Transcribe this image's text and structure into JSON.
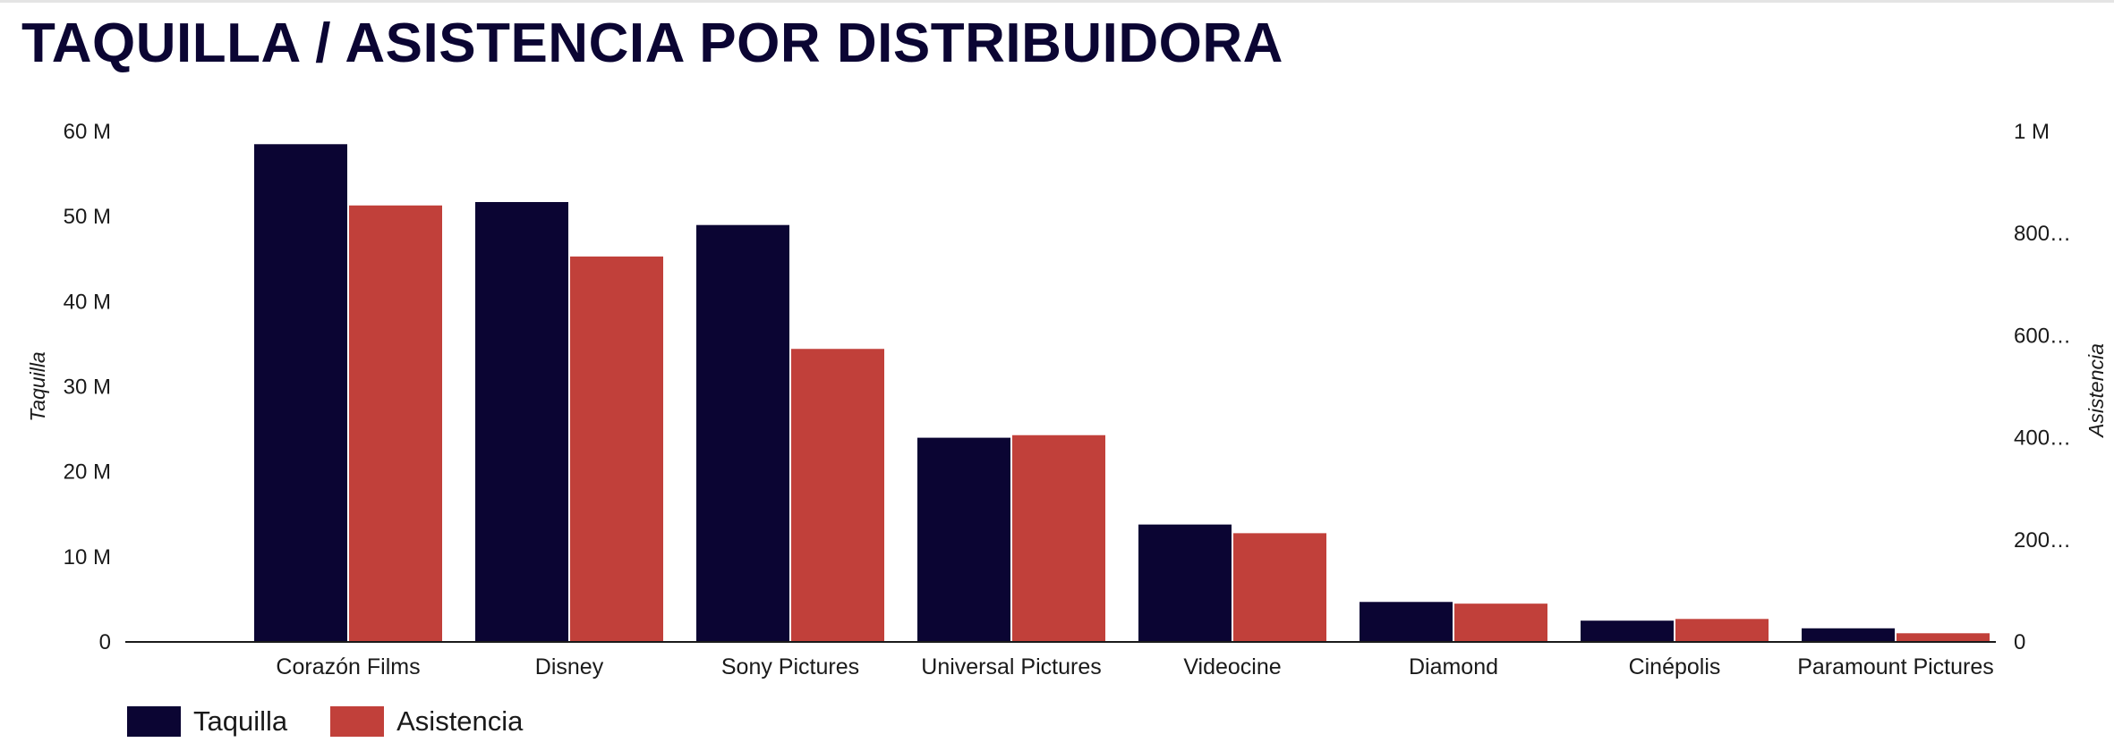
{
  "title": "TAQUILLA / ASISTENCIA POR DISTRIBUIDORA",
  "colors": {
    "taquilla": "#0b0533",
    "asistencia": "#c1403a",
    "axis": "#1a1a1a"
  },
  "chart_data": {
    "type": "bar",
    "categories": [
      "Corazón Films",
      "Disney",
      "Sony Pictures",
      "Universal Pictures",
      "Videocine",
      "Diamond",
      "Cinépolis",
      "Paramount Pictures"
    ],
    "series": [
      {
        "name": "Taquilla",
        "axis": "left",
        "values": [
          58500000,
          51700000,
          49000000,
          24000000,
          13800000,
          4700000,
          2500000,
          1600000
        ]
      },
      {
        "name": "Asistencia",
        "axis": "right",
        "values": [
          855000,
          755000,
          574000,
          405000,
          213000,
          75000,
          45000,
          17000
        ]
      }
    ],
    "ylabel": "Taquilla",
    "ylabel_right": "Asistencia",
    "ylim": [
      0,
      60000000
    ],
    "ylim_right": [
      0,
      1000000
    ],
    "yticks": [
      "0",
      "10 M",
      "20 M",
      "30 M",
      "40 M",
      "50 M",
      "60 M"
    ],
    "yticks_right": [
      "0",
      "200…",
      "400…",
      "600…",
      "800…",
      "1 M"
    ],
    "legend": {
      "position": "bottom-left",
      "items": [
        "Taquilla",
        "Asistencia"
      ]
    },
    "grid": false
  }
}
